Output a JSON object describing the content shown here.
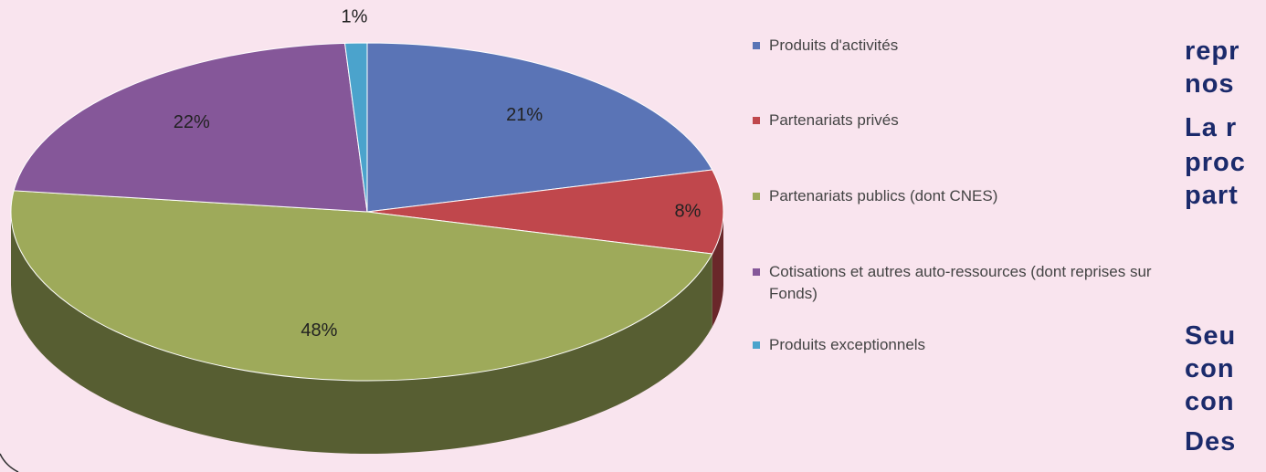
{
  "chart_data": {
    "type": "pie",
    "categories": [
      "Produits d'activités",
      "Partenariats privés",
      "Partenariats publics (dont CNES)",
      "Cotisations et autres auto-ressources (dont reprises sur Fonds)",
      "Produits exceptionnels"
    ],
    "values": [
      21,
      8,
      48,
      22,
      1
    ],
    "value_labels": [
      "21%",
      "8%",
      "48%",
      "22%",
      "1%"
    ],
    "colors": [
      "#5a74b6",
      "#c0474c",
      "#9eaa5a",
      "#855799",
      "#4ba3cc"
    ],
    "legend": "right"
  },
  "side_text": [
    "repr",
    "nos",
    "La r",
    "proc",
    "part",
    "Seu",
    "con",
    "con",
    "Des"
  ]
}
